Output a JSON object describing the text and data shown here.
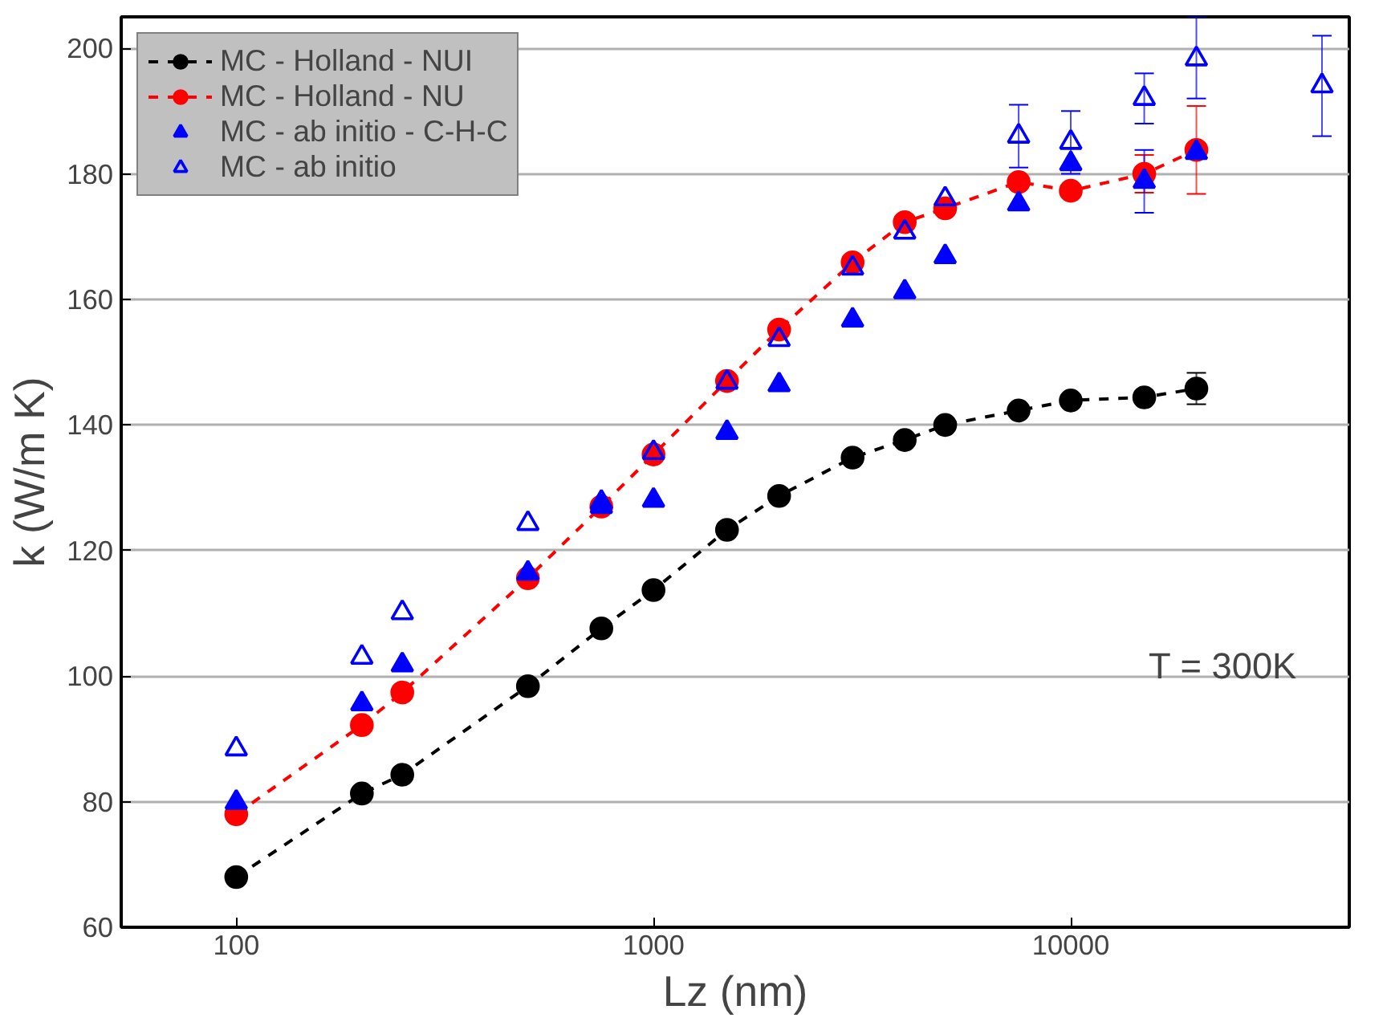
{
  "chart_data": {
    "type": "line",
    "xlabel": "Lz (nm)",
    "ylabel": "k (W/m K)",
    "log": "x",
    "xlim": [
      53,
      46500
    ],
    "ylim": [
      60,
      205
    ],
    "xticks": [
      100,
      1000,
      10000
    ],
    "yticks": [
      60,
      80,
      100,
      120,
      140,
      160,
      180,
      200
    ],
    "grid": "y",
    "legend": "top left",
    "annotations": [
      "T = 300K"
    ],
    "x": [
      100,
      200,
      250,
      500,
      750,
      1000,
      1500,
      2000,
      3000,
      4000,
      5000,
      7500,
      10000,
      15000,
      20000
    ],
    "series": [
      {
        "name": "MC - Holland - NUI",
        "color": "#000000",
        "marker": "circle",
        "line_style": "dashed",
        "values": [
          68,
          81.3,
          84.3,
          98.4,
          107.6,
          113.7,
          123.3,
          128.7,
          134.8,
          137.6,
          140,
          142.3,
          143.9,
          144.4,
          145.8
        ],
        "errors": [
          null,
          null,
          null,
          null,
          null,
          null,
          null,
          null,
          null,
          null,
          null,
          null,
          null,
          null,
          2.5
        ]
      },
      {
        "name": "MC - Holland - NU",
        "color": "#ff0000",
        "marker": "circle",
        "line_style": "dashed",
        "values": [
          78,
          92.2,
          97.4,
          115.6,
          127,
          135.3,
          147,
          155.2,
          165.9,
          172.3,
          174.5,
          178.7,
          177.3,
          180,
          183.8
        ],
        "errors": [
          null,
          null,
          null,
          null,
          null,
          null,
          null,
          null,
          null,
          null,
          null,
          null,
          null,
          3,
          7
        ]
      },
      {
        "name": "MC - ab initio - C-H-C",
        "color": "#0000ff",
        "marker": "triangle",
        "type": "scatter",
        "values": [
          79.9,
          95.6,
          101.8,
          116.4,
          127,
          128,
          138.8,
          146.4,
          156.7,
          161.2,
          166.8,
          175.2,
          181.6,
          178.8,
          183.4
        ],
        "errors": [
          null,
          null,
          null,
          null,
          null,
          null,
          null,
          null,
          null,
          null,
          null,
          null,
          null,
          5,
          null
        ]
      },
      {
        "name": "MC - ab initio",
        "color": "#0000ff",
        "marker": "triangle_open",
        "type": "scatter",
        "x": [
          100,
          200,
          250,
          500,
          750,
          1000,
          1500,
          2000,
          3000,
          4000,
          5000,
          7500,
          10000,
          15000,
          20000,
          40000
        ],
        "values": [
          88.4,
          103,
          110.1,
          124.3,
          127.7,
          135.6,
          146.8,
          153.6,
          165,
          170.7,
          176,
          186,
          185,
          192,
          198.3,
          194
        ],
        "errors": [
          null,
          null,
          null,
          null,
          null,
          null,
          null,
          null,
          null,
          null,
          null,
          5,
          5,
          4,
          [
            192,
            205
          ],
          8
        ]
      }
    ]
  }
}
